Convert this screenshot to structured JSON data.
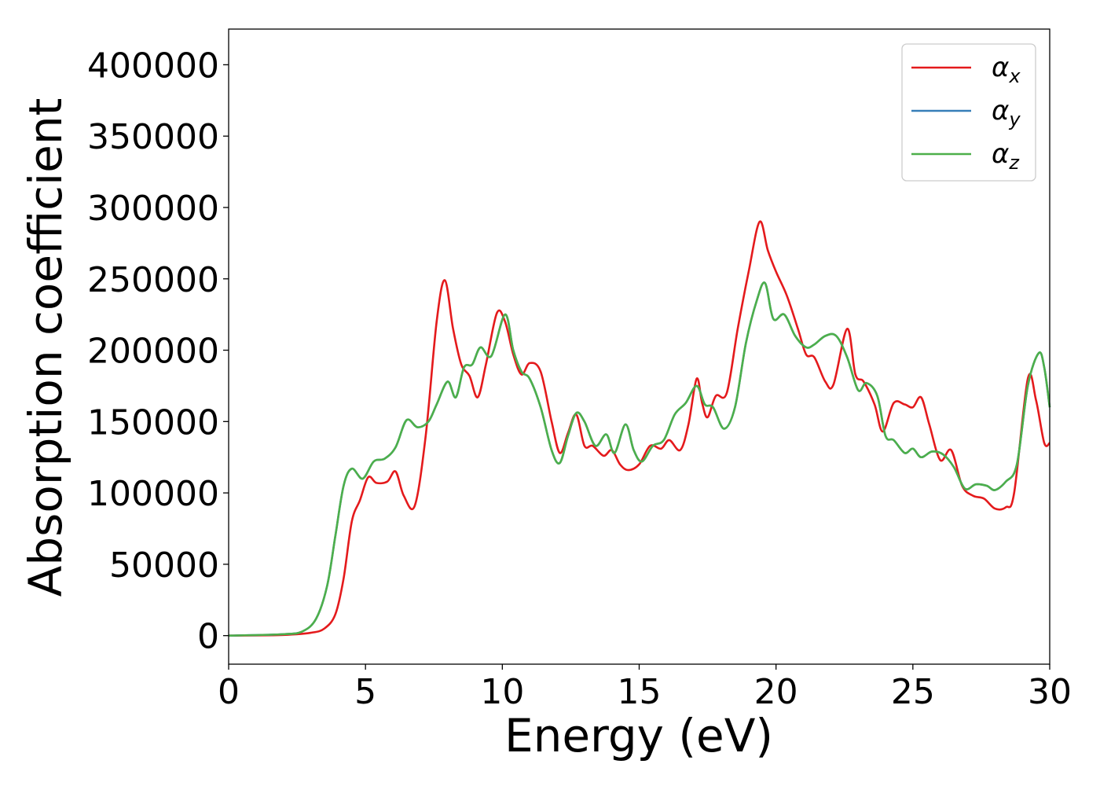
{
  "chart_data": {
    "type": "line",
    "xlabel": "Energy (eV)",
    "ylabel": "Absorption coefficient",
    "xlim": [
      0,
      30
    ],
    "ylim": [
      -20000,
      425000
    ],
    "xticks": [
      "0",
      "5",
      "10",
      "15",
      "20",
      "25",
      "30"
    ],
    "yticks": [
      "0",
      "50000",
      "100000",
      "150000",
      "200000",
      "250000",
      "300000",
      "350000",
      "400000"
    ],
    "grid": false,
    "legend_position": "top-right",
    "series": [
      {
        "name": "α_x",
        "symbol": "α",
        "sub": "x",
        "color": "#e41a1c",
        "points": [
          [
            0,
            0
          ],
          [
            2,
            500
          ],
          [
            3,
            2000
          ],
          [
            3.5,
            5000
          ],
          [
            3.9,
            15000
          ],
          [
            4.2,
            40000
          ],
          [
            4.5,
            80000
          ],
          [
            4.8,
            95000
          ],
          [
            5.1,
            111000
          ],
          [
            5.4,
            107000
          ],
          [
            5.8,
            108000
          ],
          [
            6.1,
            115000
          ],
          [
            6.4,
            98000
          ],
          [
            6.8,
            91000
          ],
          [
            7.2,
            140000
          ],
          [
            7.6,
            220000
          ],
          [
            7.9,
            249000
          ],
          [
            8.2,
            215000
          ],
          [
            8.5,
            190000
          ],
          [
            8.8,
            182000
          ],
          [
            9.1,
            167000
          ],
          [
            9.4,
            190000
          ],
          [
            9.8,
            226000
          ],
          [
            10.1,
            220000
          ],
          [
            10.4,
            197000
          ],
          [
            10.7,
            183000
          ],
          [
            11.0,
            191000
          ],
          [
            11.4,
            185000
          ],
          [
            11.8,
            150000
          ],
          [
            12.1,
            128000
          ],
          [
            12.4,
            142000
          ],
          [
            12.7,
            155000
          ],
          [
            13.0,
            133000
          ],
          [
            13.3,
            133000
          ],
          [
            13.7,
            126000
          ],
          [
            14.0,
            130000
          ],
          [
            14.3,
            120000
          ],
          [
            14.6,
            116000
          ],
          [
            15.0,
            120000
          ],
          [
            15.4,
            133000
          ],
          [
            15.8,
            131000
          ],
          [
            16.1,
            137000
          ],
          [
            16.5,
            130000
          ],
          [
            16.8,
            148000
          ],
          [
            17.1,
            180000
          ],
          [
            17.3,
            163000
          ],
          [
            17.5,
            153000
          ],
          [
            17.8,
            168000
          ],
          [
            18.2,
            170000
          ],
          [
            18.6,
            215000
          ],
          [
            19.0,
            255000
          ],
          [
            19.4,
            290000
          ],
          [
            19.7,
            270000
          ],
          [
            20.0,
            255000
          ],
          [
            20.4,
            238000
          ],
          [
            20.8,
            215000
          ],
          [
            21.1,
            197000
          ],
          [
            21.4,
            195000
          ],
          [
            21.8,
            178000
          ],
          [
            22.1,
            176000
          ],
          [
            22.6,
            215000
          ],
          [
            22.9,
            183000
          ],
          [
            23.2,
            178000
          ],
          [
            23.6,
            162000
          ],
          [
            23.9,
            143000
          ],
          [
            24.3,
            163000
          ],
          [
            24.7,
            162000
          ],
          [
            25.0,
            160000
          ],
          [
            25.3,
            167000
          ],
          [
            25.6,
            148000
          ],
          [
            26.0,
            123000
          ],
          [
            26.4,
            130000
          ],
          [
            26.8,
            105000
          ],
          [
            27.2,
            98000
          ],
          [
            27.6,
            96000
          ],
          [
            28.0,
            89000
          ],
          [
            28.4,
            90000
          ],
          [
            28.7,
            100000
          ],
          [
            29.2,
            180000
          ],
          [
            29.5,
            165000
          ],
          [
            29.8,
            135000
          ],
          [
            30,
            135000
          ]
        ]
      },
      {
        "name": "α_y",
        "symbol": "α",
        "sub": "y",
        "color": "#377eb8",
        "points": [
          [
            0,
            0
          ],
          [
            2,
            1000
          ],
          [
            2.7,
            3000
          ],
          [
            3.2,
            12000
          ],
          [
            3.6,
            35000
          ],
          [
            3.9,
            70000
          ],
          [
            4.2,
            105000
          ],
          [
            4.5,
            117000
          ],
          [
            4.9,
            110000
          ],
          [
            5.3,
            122000
          ],
          [
            5.7,
            124000
          ],
          [
            6.1,
            132000
          ],
          [
            6.5,
            151000
          ],
          [
            6.9,
            146000
          ],
          [
            7.3,
            150000
          ],
          [
            7.6,
            162000
          ],
          [
            8.0,
            178000
          ],
          [
            8.3,
            167000
          ],
          [
            8.6,
            188000
          ],
          [
            8.9,
            190000
          ],
          [
            9.2,
            202000
          ],
          [
            9.6,
            196000
          ],
          [
            10.1,
            225000
          ],
          [
            10.4,
            200000
          ],
          [
            10.7,
            185000
          ],
          [
            11.0,
            180000
          ],
          [
            11.4,
            160000
          ],
          [
            11.8,
            130000
          ],
          [
            12.1,
            121000
          ],
          [
            12.4,
            140000
          ],
          [
            12.7,
            156000
          ],
          [
            13.0,
            150000
          ],
          [
            13.4,
            133000
          ],
          [
            13.8,
            141000
          ],
          [
            14.1,
            128000
          ],
          [
            14.5,
            148000
          ],
          [
            14.8,
            130000
          ],
          [
            15.1,
            122000
          ],
          [
            15.5,
            133000
          ],
          [
            15.9,
            137000
          ],
          [
            16.3,
            155000
          ],
          [
            16.7,
            163000
          ],
          [
            17.1,
            175000
          ],
          [
            17.4,
            162000
          ],
          [
            17.7,
            160000
          ],
          [
            18.1,
            145000
          ],
          [
            18.5,
            160000
          ],
          [
            18.9,
            205000
          ],
          [
            19.3,
            235000
          ],
          [
            19.6,
            247000
          ],
          [
            19.9,
            222000
          ],
          [
            20.3,
            225000
          ],
          [
            20.7,
            210000
          ],
          [
            21.1,
            202000
          ],
          [
            21.4,
            204000
          ],
          [
            21.8,
            210000
          ],
          [
            22.2,
            210000
          ],
          [
            22.6,
            195000
          ],
          [
            23.0,
            172000
          ],
          [
            23.3,
            177000
          ],
          [
            23.7,
            168000
          ],
          [
            24.0,
            140000
          ],
          [
            24.3,
            137000
          ],
          [
            24.7,
            128000
          ],
          [
            25.0,
            131000
          ],
          [
            25.3,
            125000
          ],
          [
            25.7,
            129000
          ],
          [
            26.1,
            127000
          ],
          [
            26.5,
            118000
          ],
          [
            26.9,
            103000
          ],
          [
            27.3,
            106000
          ],
          [
            27.7,
            105000
          ],
          [
            28.0,
            102000
          ],
          [
            28.4,
            108000
          ],
          [
            28.8,
            120000
          ],
          [
            29.2,
            175000
          ],
          [
            29.6,
            198000
          ],
          [
            29.8,
            188000
          ],
          [
            30,
            160000
          ]
        ]
      },
      {
        "name": "α_z",
        "symbol": "α",
        "sub": "z",
        "color": "#4daf4a",
        "points": [
          [
            0,
            0
          ],
          [
            2,
            1000
          ],
          [
            2.7,
            3000
          ],
          [
            3.2,
            12000
          ],
          [
            3.6,
            35000
          ],
          [
            3.9,
            70000
          ],
          [
            4.2,
            105000
          ],
          [
            4.5,
            117000
          ],
          [
            4.9,
            110000
          ],
          [
            5.3,
            122000
          ],
          [
            5.7,
            124000
          ],
          [
            6.1,
            132000
          ],
          [
            6.5,
            151000
          ],
          [
            6.9,
            146000
          ],
          [
            7.3,
            150000
          ],
          [
            7.6,
            162000
          ],
          [
            8.0,
            178000
          ],
          [
            8.3,
            167000
          ],
          [
            8.6,
            188000
          ],
          [
            8.9,
            190000
          ],
          [
            9.2,
            202000
          ],
          [
            9.6,
            196000
          ],
          [
            10.1,
            225000
          ],
          [
            10.4,
            200000
          ],
          [
            10.7,
            185000
          ],
          [
            11.0,
            180000
          ],
          [
            11.4,
            160000
          ],
          [
            11.8,
            130000
          ],
          [
            12.1,
            121000
          ],
          [
            12.4,
            140000
          ],
          [
            12.7,
            156000
          ],
          [
            13.0,
            150000
          ],
          [
            13.4,
            133000
          ],
          [
            13.8,
            141000
          ],
          [
            14.1,
            128000
          ],
          [
            14.5,
            148000
          ],
          [
            14.8,
            130000
          ],
          [
            15.1,
            122000
          ],
          [
            15.5,
            133000
          ],
          [
            15.9,
            137000
          ],
          [
            16.3,
            155000
          ],
          [
            16.7,
            163000
          ],
          [
            17.1,
            175000
          ],
          [
            17.4,
            162000
          ],
          [
            17.7,
            160000
          ],
          [
            18.1,
            145000
          ],
          [
            18.5,
            160000
          ],
          [
            18.9,
            205000
          ],
          [
            19.3,
            235000
          ],
          [
            19.6,
            247000
          ],
          [
            19.9,
            222000
          ],
          [
            20.3,
            225000
          ],
          [
            20.7,
            210000
          ],
          [
            21.1,
            202000
          ],
          [
            21.4,
            204000
          ],
          [
            21.8,
            210000
          ],
          [
            22.2,
            210000
          ],
          [
            22.6,
            195000
          ],
          [
            23.0,
            172000
          ],
          [
            23.3,
            177000
          ],
          [
            23.7,
            168000
          ],
          [
            24.0,
            140000
          ],
          [
            24.3,
            137000
          ],
          [
            24.7,
            128000
          ],
          [
            25.0,
            131000
          ],
          [
            25.3,
            125000
          ],
          [
            25.7,
            129000
          ],
          [
            26.1,
            127000
          ],
          [
            26.5,
            118000
          ],
          [
            26.9,
            103000
          ],
          [
            27.3,
            106000
          ],
          [
            27.7,
            105000
          ],
          [
            28.0,
            102000
          ],
          [
            28.4,
            108000
          ],
          [
            28.8,
            120000
          ],
          [
            29.2,
            175000
          ],
          [
            29.6,
            198000
          ],
          [
            29.8,
            188000
          ],
          [
            30,
            160000
          ]
        ]
      }
    ]
  }
}
